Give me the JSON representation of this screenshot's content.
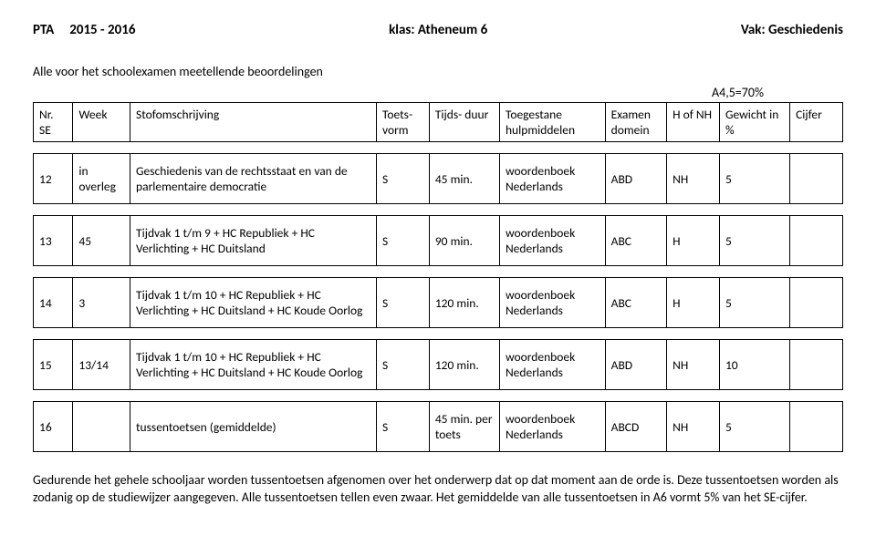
{
  "header": {
    "left_label": "PTA",
    "year": "2015 - 2016",
    "mid_label": "klas:",
    "klas": "Atheneum 6",
    "right_label": "Vak:",
    "vak": "Geschiedenis"
  },
  "intro": "Alle voor het schoolexamen meetellende beoordelingen",
  "a45": "A4,5=70%",
  "columns": {
    "nr": "Nr. SE",
    "week": "Week",
    "desc": "Stofomschrijving",
    "vorm": "Toets-\nvorm",
    "duur": "Tijds-\nduur",
    "hulp": "Toegestane hulpmiddelen",
    "dom": "Examen domein",
    "hof": "H of NH",
    "gewicht": "Gewicht in %",
    "cijfer": "Cijfer"
  },
  "rows": [
    {
      "nr": "12",
      "week": "in overleg",
      "desc": "Geschiedenis van de rechtsstaat en van de parlementaire democratie",
      "vorm": "S",
      "duur": "45 min.",
      "hulp": "woordenboek Nederlands",
      "dom": "ABD",
      "hof": "NH",
      "gewicht": "5",
      "cijfer": ""
    },
    {
      "nr": "13",
      "week": "45",
      "desc": "Tijdvak 1 t/m 9 + HC Republiek + HC Verlichting + HC Duitsland",
      "vorm": "S",
      "duur": "90 min.",
      "hulp": "woordenboek Nederlands",
      "dom": "ABC",
      "hof": "H",
      "gewicht": "5",
      "cijfer": ""
    },
    {
      "nr": "14",
      "week": "3",
      "desc": "Tijdvak 1 t/m 10 + HC Republiek + HC Verlichting + HC Duitsland + HC Koude Oorlog",
      "vorm": "S",
      "duur": "120 min.",
      "hulp": "woordenboek Nederlands",
      "dom": "ABC",
      "hof": "H",
      "gewicht": "5",
      "cijfer": ""
    },
    {
      "nr": "15",
      "week": "13/14",
      "desc": "Tijdvak 1 t/m 10 + HC Republiek + HC Verlichting + HC Duitsland + HC Koude Oorlog",
      "vorm": "S",
      "duur": "120 min.",
      "hulp": "woordenboek Nederlands",
      "dom": "ABD",
      "hof": "NH",
      "gewicht": "10",
      "cijfer": ""
    },
    {
      "nr": "16",
      "week": "",
      "desc": "tussentoetsen (gemiddelde)",
      "vorm": "S",
      "duur": "45 min. per toets",
      "hulp": "woordenboek Nederlands",
      "dom": "ABCD",
      "hof": "NH",
      "gewicht": "5",
      "cijfer": ""
    }
  ],
  "footer": "Gedurende het gehele schooljaar worden tussentoetsen afgenomen over het onderwerp dat op dat moment aan de orde is. Deze tussentoetsen worden als zodanig op de studiewijzer aangegeven. Alle tussentoetsen tellen even zwaar. Het gemiddelde van alle tussentoetsen in A6 vormt 5% van het SE-cijfer."
}
